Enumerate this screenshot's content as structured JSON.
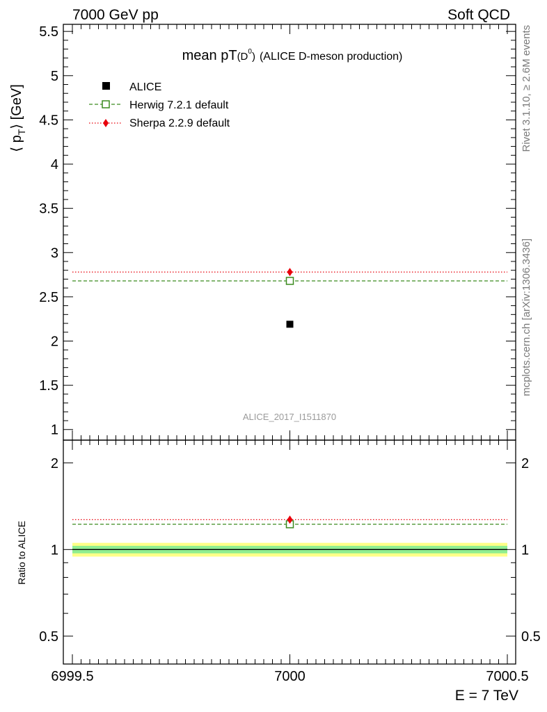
{
  "header": {
    "left": "7000 GeV pp",
    "right": "Soft QCD"
  },
  "side": {
    "rivet": "Rivet 3.1.10, ≥ 2.6M events",
    "mcplots": "mcplots.cern.ch [arXiv:1306.3436]"
  },
  "colors": {
    "herwig": "#3a8a1e",
    "sherpa": "#e8000b",
    "data": "#000000",
    "band_outer": "#ffff88",
    "band_inner": "#90ee90"
  },
  "chart_data": [
    {
      "panel": "main",
      "type": "scatter",
      "title": "mean pT(D0) (ALICE D-meson production)",
      "title_main": "mean pT",
      "title_sub": "(D",
      "title_sup": "0",
      "title_close": ")",
      "title_rest": "(ALICE D-meson production)",
      "ylabel_left": "⟨ p",
      "ylabel_sub": "T",
      "ylabel_right": "⟩ [GeV]",
      "analysis_id": "ALICE_2017_I1511870",
      "xlim": [
        6999.5,
        7000.5
      ],
      "ylim": [
        0.88,
        5.58
      ],
      "yticks": [
        1,
        1.5,
        2,
        2.5,
        3,
        3.5,
        4,
        4.5,
        5,
        5.5
      ],
      "ytick_labels": [
        "1",
        "1.5",
        "2",
        "2.5",
        "3",
        "3.5",
        "4",
        "4.5",
        "5",
        "5.5"
      ],
      "legend_position": "top-left",
      "series": [
        {
          "name": "ALICE",
          "style": "data",
          "x": [
            7000
          ],
          "y": [
            2.19
          ]
        },
        {
          "name": "Herwig 7.2.1 default",
          "style": "herwig",
          "x": [
            7000
          ],
          "y": [
            2.68
          ]
        },
        {
          "name": "Sherpa 2.2.9 default",
          "style": "sherpa",
          "x": [
            7000
          ],
          "y": [
            2.78
          ]
        }
      ]
    },
    {
      "panel": "ratio",
      "type": "line",
      "ylabel": "Ratio to ALICE",
      "xlabel": "E = 7 TeV",
      "xlim": [
        6999.5,
        7000.5
      ],
      "ylim": [
        0.4,
        2.4
      ],
      "xticks": [
        6999.5,
        7000,
        7000.5
      ],
      "xtick_labels": [
        "6999.5",
        "7000",
        "7000.5"
      ],
      "yticks": [
        0.5,
        1,
        2
      ],
      "ytick_labels": [
        "0.5",
        "1",
        "2"
      ],
      "bands": {
        "inner": [
          0.97,
          1.03
        ],
        "outer": [
          0.945,
          1.055
        ]
      },
      "series": [
        {
          "name": "ALICE",
          "style": "data",
          "x": [
            7000
          ],
          "y": [
            1.0
          ]
        },
        {
          "name": "Herwig 7.2.1 default",
          "style": "herwig",
          "x": [
            7000
          ],
          "y": [
            1.224
          ]
        },
        {
          "name": "Sherpa 2.2.9 default",
          "style": "sherpa",
          "x": [
            7000
          ],
          "y": [
            1.27
          ]
        }
      ]
    }
  ]
}
